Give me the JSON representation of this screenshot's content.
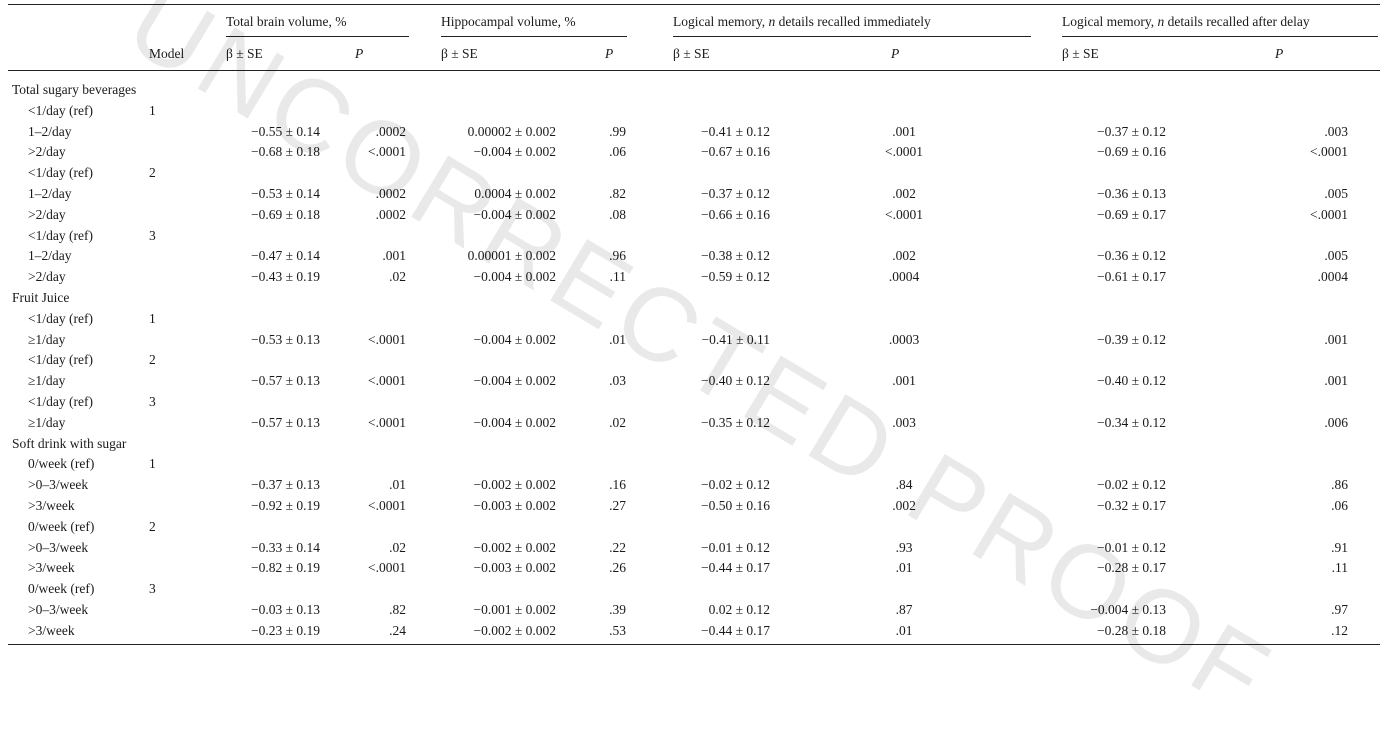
{
  "header": {
    "groups": [
      {
        "label": "Total brain volume, %"
      },
      {
        "label": "Hippocampal volume, %"
      },
      {
        "label_pre": "Logical memory, ",
        "label_it": "n",
        "label_post": " details recalled immediately"
      },
      {
        "label_pre": "Logical memory, ",
        "label_it": "n",
        "label_post": " details recalled after delay"
      }
    ],
    "model_label": "Model",
    "beta_label": "β ± SE",
    "p_label": "P"
  },
  "watermark": "UNCORRECTED PROOF",
  "rows": [
    {
      "section": "Total sugary beverages"
    },
    {
      "label": "<1/day (ref)",
      "model": "1"
    },
    {
      "label": "1–2/day",
      "vals": [
        "−0.55 ± 0.14",
        ".0002",
        "0.00002 ± 0.002",
        ".99",
        "−0.41 ± 0.12",
        ".001",
        "−0.37 ± 0.12",
        ".003"
      ]
    },
    {
      "label": ">2/day",
      "vals": [
        "−0.68 ± 0.18",
        "<.0001",
        "−0.004 ± 0.002",
        ".06",
        "−0.67 ± 0.16",
        "<.0001",
        "−0.69 ± 0.16",
        "<.0001"
      ]
    },
    {
      "label": "<1/day (ref)",
      "model": "2"
    },
    {
      "label": "1–2/day",
      "vals": [
        "−0.53 ± 0.14",
        ".0002",
        "0.0004 ± 0.002",
        ".82",
        "−0.37 ± 0.12",
        ".002",
        "−0.36 ± 0.13",
        ".005"
      ]
    },
    {
      "label": ">2/day",
      "vals": [
        "−0.69 ± 0.18",
        ".0002",
        "−0.004 ± 0.002",
        ".08",
        "−0.66 ± 0.16",
        "<.0001",
        "−0.69 ± 0.17",
        "<.0001"
      ]
    },
    {
      "label": "<1/day (ref)",
      "model": "3"
    },
    {
      "label": "1–2/day",
      "vals": [
        "−0.47 ± 0.14",
        ".001",
        "0.00001 ± 0.002",
        ".96",
        "−0.38 ± 0.12",
        ".002",
        "−0.36 ± 0.12",
        ".005"
      ]
    },
    {
      "label": ">2/day",
      "vals": [
        "−0.43 ± 0.19",
        ".02",
        "−0.004 ± 0.002",
        ".11",
        "−0.59 ± 0.12",
        ".0004",
        "−0.61 ± 0.17",
        ".0004"
      ]
    },
    {
      "section": "Fruit Juice"
    },
    {
      "label": "<1/day (ref)",
      "model": "1"
    },
    {
      "label": "≥1/day",
      "vals": [
        "−0.53 ± 0.13",
        "<.0001",
        "−0.004 ± 0.002",
        ".01",
        "−0.41 ± 0.11",
        ".0003",
        "−0.39 ± 0.12",
        ".001"
      ]
    },
    {
      "label": "<1/day (ref)",
      "model": "2"
    },
    {
      "label": "≥1/day",
      "vals": [
        "−0.57 ± 0.13",
        "<.0001",
        "−0.004 ± 0.002",
        ".03",
        "−0.40 ± 0.12",
        ".001",
        "−0.40 ± 0.12",
        ".001"
      ]
    },
    {
      "label": "<1/day (ref)",
      "model": "3"
    },
    {
      "label": "≥1/day",
      "vals": [
        "−0.57 ± 0.13",
        "<.0001",
        "−0.004 ± 0.002",
        ".02",
        "−0.35 ± 0.12",
        ".003",
        "−0.34 ± 0.12",
        ".006"
      ]
    },
    {
      "section": "Soft drink with sugar"
    },
    {
      "label": "0/week (ref)",
      "model": "1"
    },
    {
      "label": ">0–3/week",
      "vals": [
        "−0.37 ± 0.13",
        ".01",
        "−0.002 ± 0.002",
        ".16",
        "−0.02 ± 0.12",
        ".84",
        "−0.02 ± 0.12",
        ".86"
      ]
    },
    {
      "label": ">3/week",
      "vals": [
        "−0.92 ± 0.19",
        "<.0001",
        "−0.003 ± 0.002",
        ".27",
        "−0.50 ± 0.16",
        ".002",
        "−0.32 ± 0.17",
        ".06"
      ]
    },
    {
      "label": "0/week (ref)",
      "model": "2"
    },
    {
      "label": ">0–3/week",
      "vals": [
        "−0.33 ± 0.14",
        ".02",
        "−0.002 ± 0.002",
        ".22",
        "−0.01 ± 0.12",
        ".93",
        "−0.01 ± 0.12",
        ".91"
      ]
    },
    {
      "label": ">3/week",
      "vals": [
        "−0.82 ± 0.19",
        "<.0001",
        "−0.003 ± 0.002",
        ".26",
        "−0.44 ± 0.17",
        ".01",
        "−0.28 ± 0.17",
        ".11"
      ]
    },
    {
      "label": "0/week (ref)",
      "model": "3"
    },
    {
      "label": ">0–3/week",
      "vals": [
        "−0.03 ± 0.13",
        ".82",
        "−0.001 ± 0.002",
        ".39",
        "0.02 ± 0.12",
        ".87",
        "−0.004 ± 0.13",
        ".97"
      ]
    },
    {
      "label": ">3/week",
      "vals": [
        "−0.23 ± 0.19",
        ".24",
        "−0.002 ± 0.002",
        ".53",
        "−0.44 ± 0.17",
        ".01",
        "−0.28 ± 0.18",
        ".12"
      ]
    }
  ]
}
